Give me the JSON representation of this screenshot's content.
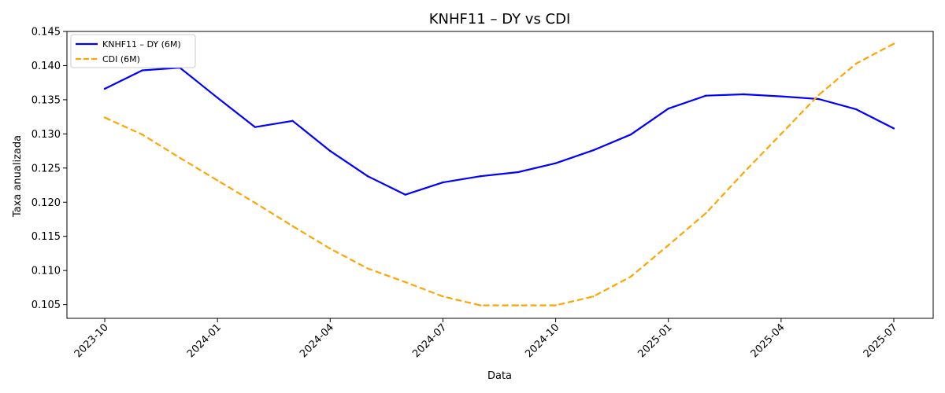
{
  "chart_data": {
    "type": "line",
    "title": "KNHF11 – DY vs CDI",
    "xlabel": "Data",
    "ylabel": "Taxa anualizada",
    "x": [
      "2023-10",
      "2023-11",
      "2023-12",
      "2024-01",
      "2024-02",
      "2024-03",
      "2024-04",
      "2024-05",
      "2024-06",
      "2024-07",
      "2024-08",
      "2024-09",
      "2024-10",
      "2024-11",
      "2024-12",
      "2025-01",
      "2025-02",
      "2025-03",
      "2025-04",
      "2025-05",
      "2025-06",
      "2025-07"
    ],
    "x_ticks": [
      "2023-10",
      "2024-01",
      "2024-04",
      "2024-07",
      "2024-10",
      "2025-01",
      "2025-04",
      "2025-07"
    ],
    "ylim": [
      0.103,
      0.145
    ],
    "y_ticks": [
      "0.105",
      "0.110",
      "0.115",
      "0.120",
      "0.125",
      "0.130",
      "0.135",
      "0.140",
      "0.145"
    ],
    "grid": false,
    "legend_position": "top-left",
    "series": [
      {
        "name": "KNHF11 – DY (6M)",
        "color": "#0000ff",
        "style": "solid",
        "values": [
          0.1366,
          0.1393,
          0.1397,
          0.1353,
          0.131,
          0.1319,
          0.1275,
          0.1238,
          0.1211,
          0.1229,
          0.1238,
          0.1244,
          0.1257,
          0.1276,
          0.1299,
          0.1337,
          0.1356,
          0.1358,
          0.1355,
          0.1351,
          0.1336,
          0.1308
        ]
      },
      {
        "name": "CDI (6M)",
        "color": "#ffa500",
        "style": "dashed",
        "values": [
          0.1324,
          0.1299,
          0.1265,
          0.1232,
          0.1199,
          0.1165,
          0.1132,
          0.1103,
          0.1083,
          0.1062,
          0.1049,
          0.1049,
          0.1049,
          0.1062,
          0.1091,
          0.1137,
          0.1184,
          0.1243,
          0.13,
          0.1357,
          0.1403,
          0.1432
        ]
      }
    ]
  }
}
